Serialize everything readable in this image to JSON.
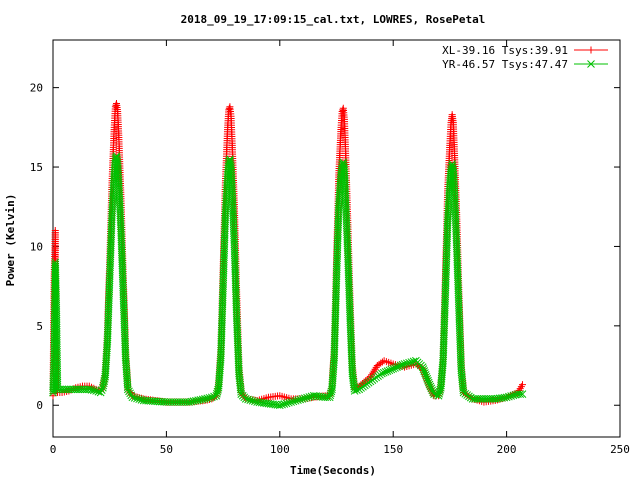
{
  "chart_data": {
    "type": "line",
    "title": "2018_09_19_17:09:15_cal.txt, LOWRES, RosePetal",
    "xlabel": "Time(Seconds)",
    "ylabel": "Power (Kelvin)",
    "xlim": [
      0,
      250
    ],
    "ylim": [
      -2,
      23
    ],
    "xticks": [
      0,
      50,
      100,
      150,
      200,
      250
    ],
    "yticks": [
      0,
      5,
      10,
      15,
      20
    ],
    "legend_position": "top-right",
    "series": [
      {
        "name": "XL-39.16 Tsys:39.91",
        "color": "#ff0000",
        "marker": "plus",
        "points": [
          [
            0.0,
            0.6
          ],
          [
            0.5,
            8.0
          ],
          [
            1.0,
            11.0
          ],
          [
            1.5,
            1.0
          ],
          [
            2,
            0.8
          ],
          [
            4,
            0.8
          ],
          [
            7,
            0.9
          ],
          [
            10,
            1.1
          ],
          [
            13,
            1.2
          ],
          [
            16,
            1.2
          ],
          [
            19,
            1.0
          ],
          [
            21,
            0.9
          ],
          [
            22,
            1.2
          ],
          [
            23,
            2.0
          ],
          [
            24,
            4.5
          ],
          [
            25,
            9.0
          ],
          [
            26,
            14.0
          ],
          [
            27,
            17.5
          ],
          [
            27.5,
            18.8
          ],
          [
            28,
            19.0
          ],
          [
            28.5,
            18.5
          ],
          [
            29,
            17.0
          ],
          [
            30,
            13.0
          ],
          [
            31,
            8.0
          ],
          [
            32,
            3.5
          ],
          [
            33,
            1.0
          ],
          [
            35,
            0.6
          ],
          [
            40,
            0.4
          ],
          [
            50,
            0.2
          ],
          [
            60,
            0.2
          ],
          [
            67,
            0.3
          ],
          [
            70,
            0.4
          ],
          [
            72,
            0.6
          ],
          [
            73,
            1.2
          ],
          [
            74,
            3.5
          ],
          [
            75,
            8.5
          ],
          [
            76,
            14.0
          ],
          [
            77,
            17.5
          ],
          [
            77.5,
            18.6
          ],
          [
            78,
            18.8
          ],
          [
            78.5,
            18.2
          ],
          [
            79,
            16.5
          ],
          [
            80,
            12.5
          ],
          [
            81,
            7.0
          ],
          [
            82,
            2.5
          ],
          [
            83,
            0.8
          ],
          [
            85,
            0.4
          ],
          [
            90,
            0.3
          ],
          [
            95,
            0.5
          ],
          [
            100,
            0.6
          ],
          [
            105,
            0.4
          ],
          [
            110,
            0.4
          ],
          [
            115,
            0.5
          ],
          [
            120,
            0.6
          ],
          [
            122,
            0.6
          ],
          [
            123,
            1.2
          ],
          [
            124,
            3.5
          ],
          [
            125,
            9.0
          ],
          [
            126,
            14.5
          ],
          [
            127,
            17.5
          ],
          [
            127.5,
            18.5
          ],
          [
            128,
            18.7
          ],
          [
            128.5,
            18.0
          ],
          [
            129,
            16.0
          ],
          [
            130,
            11.5
          ],
          [
            131,
            6.5
          ],
          [
            132,
            2.5
          ],
          [
            133,
            1.0
          ],
          [
            135,
            1.2
          ],
          [
            140,
            1.8
          ],
          [
            143,
            2.5
          ],
          [
            146,
            2.8
          ],
          [
            150,
            2.6
          ],
          [
            155,
            2.4
          ],
          [
            160,
            2.6
          ],
          [
            163,
            2.3
          ],
          [
            166,
            1.2
          ],
          [
            168,
            0.6
          ],
          [
            170,
            0.6
          ],
          [
            171,
            1.2
          ],
          [
            172,
            3.0
          ],
          [
            173,
            8.0
          ],
          [
            174,
            13.5
          ],
          [
            175,
            16.5
          ],
          [
            175.5,
            17.8
          ],
          [
            176,
            18.3
          ],
          [
            176.5,
            17.8
          ],
          [
            177,
            16.0
          ],
          [
            178,
            12.0
          ],
          [
            179,
            7.0
          ],
          [
            180,
            2.5
          ],
          [
            181,
            0.8
          ],
          [
            185,
            0.4
          ],
          [
            190,
            0.2
          ],
          [
            195,
            0.3
          ],
          [
            200,
            0.5
          ],
          [
            205,
            0.8
          ],
          [
            207,
            1.3
          ]
        ]
      },
      {
        "name": "YR-46.57 Tsys:47.47",
        "color": "#00c000",
        "marker": "x",
        "points": [
          [
            0.0,
            0.8
          ],
          [
            0.5,
            3.0
          ],
          [
            1.0,
            9.0
          ],
          [
            1.5,
            6.0
          ],
          [
            2,
            1.0
          ],
          [
            4,
            1.0
          ],
          [
            7,
            1.0
          ],
          [
            10,
            1.0
          ],
          [
            13,
            1.0
          ],
          [
            16,
            1.0
          ],
          [
            19,
            0.9
          ],
          [
            21,
            0.8
          ],
          [
            22,
            1.1
          ],
          [
            23,
            1.8
          ],
          [
            24,
            4.0
          ],
          [
            25,
            8.0
          ],
          [
            26,
            12.0
          ],
          [
            27,
            14.5
          ],
          [
            27.5,
            15.5
          ],
          [
            28,
            15.7
          ],
          [
            28.5,
            15.2
          ],
          [
            29,
            14.0
          ],
          [
            30,
            11.0
          ],
          [
            31,
            7.0
          ],
          [
            32,
            3.0
          ],
          [
            33,
            1.0
          ],
          [
            35,
            0.5
          ],
          [
            40,
            0.3
          ],
          [
            50,
            0.2
          ],
          [
            60,
            0.2
          ],
          [
            67,
            0.4
          ],
          [
            70,
            0.5
          ],
          [
            72,
            0.6
          ],
          [
            73,
            1.1
          ],
          [
            74,
            3.0
          ],
          [
            75,
            7.5
          ],
          [
            76,
            12.0
          ],
          [
            77,
            14.5
          ],
          [
            77.5,
            15.3
          ],
          [
            78,
            15.5
          ],
          [
            78.5,
            15.0
          ],
          [
            79,
            13.5
          ],
          [
            80,
            10.0
          ],
          [
            81,
            5.5
          ],
          [
            82,
            2.0
          ],
          [
            83,
            0.7
          ],
          [
            85,
            0.4
          ],
          [
            90,
            0.2
          ],
          [
            95,
            0.1
          ],
          [
            100,
            0.0
          ],
          [
            105,
            0.2
          ],
          [
            110,
            0.4
          ],
          [
            115,
            0.6
          ],
          [
            120,
            0.5
          ],
          [
            122,
            0.5
          ],
          [
            123,
            1.0
          ],
          [
            124,
            3.0
          ],
          [
            125,
            8.0
          ],
          [
            126,
            12.5
          ],
          [
            127,
            14.5
          ],
          [
            127.5,
            15.2
          ],
          [
            128,
            15.3
          ],
          [
            128.5,
            14.8
          ],
          [
            129,
            13.0
          ],
          [
            130,
            9.5
          ],
          [
            131,
            5.5
          ],
          [
            132,
            2.0
          ],
          [
            133,
            0.9
          ],
          [
            135,
            1.0
          ],
          [
            140,
            1.5
          ],
          [
            145,
            2.0
          ],
          [
            150,
            2.3
          ],
          [
            155,
            2.6
          ],
          [
            160,
            2.8
          ],
          [
            163,
            2.4
          ],
          [
            166,
            1.3
          ],
          [
            168,
            0.7
          ],
          [
            170,
            0.6
          ],
          [
            171,
            1.1
          ],
          [
            172,
            2.8
          ],
          [
            173,
            7.0
          ],
          [
            174,
            11.5
          ],
          [
            175,
            14.0
          ],
          [
            175.5,
            14.9
          ],
          [
            176,
            15.2
          ],
          [
            176.5,
            14.8
          ],
          [
            177,
            13.5
          ],
          [
            178,
            10.0
          ],
          [
            179,
            6.0
          ],
          [
            180,
            2.2
          ],
          [
            181,
            0.8
          ],
          [
            185,
            0.4
          ],
          [
            190,
            0.4
          ],
          [
            195,
            0.4
          ],
          [
            200,
            0.5
          ],
          [
            205,
            0.7
          ],
          [
            207,
            0.7
          ]
        ]
      }
    ]
  }
}
